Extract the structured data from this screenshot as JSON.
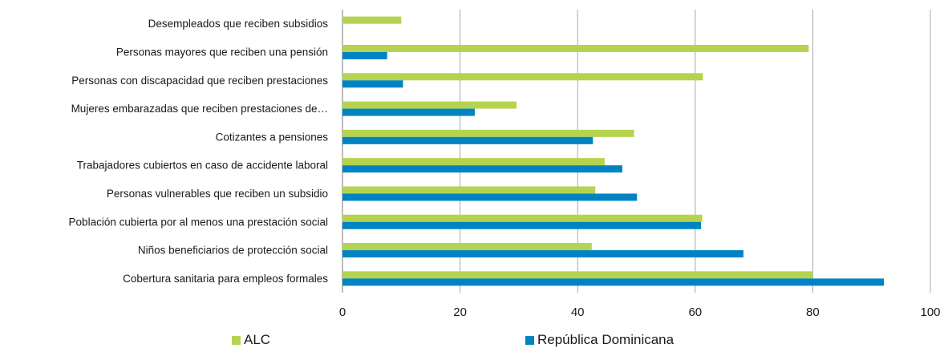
{
  "chart_data": {
    "type": "bar",
    "orientation": "horizontal",
    "categories": [
      "Desempleados que reciben subsidios",
      "Personas mayores que reciben una pensión",
      "Personas con discapacidad que reciben prestaciones",
      "Mujeres embarazadas que reciben prestaciones de…",
      "Cotizantes a pensiones",
      "Trabajadores cubiertos en caso de accidente laboral",
      "Personas vulnerables que reciben un subsidio",
      "Población cubierta por al menos una prestación social",
      "Niños beneficiarios de protección social",
      "Cobertura sanitaria para empleos formales"
    ],
    "series": [
      {
        "name": "ALC",
        "color": "#b5d34f",
        "values": [
          10,
          79.3,
          61.3,
          29.6,
          49.6,
          44.6,
          43,
          61.2,
          42.4,
          80
        ]
      },
      {
        "name": "República Dominicana",
        "color": "#0083c3",
        "values": [
          null,
          7.6,
          10.3,
          22.5,
          42.6,
          47.6,
          50.1,
          61,
          68.2,
          92.1
        ]
      }
    ],
    "xlim": [
      0,
      100
    ],
    "xticks": [
      0,
      20,
      40,
      60,
      80,
      100
    ],
    "grid": true,
    "legend_position": "bottom",
    "title": "",
    "xlabel": "",
    "ylabel": ""
  }
}
